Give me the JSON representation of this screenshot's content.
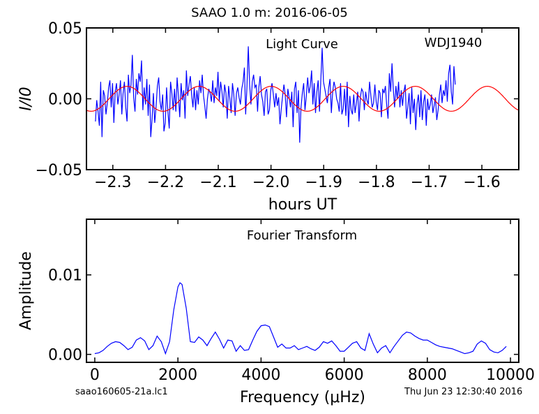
{
  "page": {
    "title": "SAAO 1.0 m:  2016-06-05",
    "footer_left": "saao160605-21a.lc1",
    "footer_right": "Thu Jun 23 12:30:40 2016"
  },
  "chart_data": [
    {
      "type": "line",
      "title": "Light Curve",
      "annotation": "WDJ1940",
      "xlabel": "hours UT",
      "ylabel": "I/I0",
      "xlim": [
        -2.35,
        -1.53
      ],
      "ylim": [
        -0.05,
        0.05
      ],
      "xticks": [
        -2.3,
        -2.2,
        -2.1,
        -2.0,
        -1.9,
        -1.8,
        -1.7,
        -1.6
      ],
      "xtick_labels": [
        "−2.3",
        "−2.2",
        "−2.1",
        "−2.0",
        "−1.9",
        "−1.8",
        "−1.7",
        "−1.6"
      ],
      "yticks": [
        -0.05,
        0.0,
        0.05
      ],
      "ytick_labels": [
        "−0.05",
        "0.00",
        "0.05"
      ],
      "grid": false,
      "series": [
        {
          "color": "#0000ff",
          "x_start": -2.333,
          "x_step": 0.0025,
          "values": [
            -0.016,
            -0.001,
            -0.009,
            -0.019,
            0.012,
            -0.027,
            0.006,
            0.002,
            -0.011,
            -0.003,
            0.008,
            0.013,
            -0.006,
            0.011,
            -0.017,
            0.005,
            0.011,
            -0.004,
            0.003,
            0.013,
            -0.011,
            0.004,
            0.012,
            -0.006,
            -0.016,
            0.017,
            0.004,
            0.01,
            0.031,
            0.001,
            -0.009,
            0.014,
            0.003,
            0.018,
            0.012,
            0.027,
            -0.008,
            0.008,
            -0.004,
            0.014,
            -0.012,
            0.01,
            -0.027,
            -0.014,
            0.004,
            -0.017,
            -0.006,
            0.009,
            0.015,
            -0.002,
            -0.008,
            0.003,
            -0.023,
            -0.017,
            0.008,
            -0.009,
            -0.021,
            0.012,
            0.004,
            -0.008,
            0.007,
            -0.009,
            0.015,
            0.002,
            -0.013,
            0.011,
            -0.001,
            0.006,
            -0.014,
            0.02,
            0.002,
            0.01,
            0.016,
            0.003,
            -0.006,
            0.008,
            -0.008,
            0.006,
            -0.004,
            0.013,
            0.004,
            0.017,
            0.002,
            -0.005,
            -0.014,
            0.0,
            0.007,
            0.004,
            -0.002,
            0.013,
            -0.003,
            0.008,
            0.002,
            0.019,
            -0.002,
            0.012,
            0.005,
            -0.006,
            0.01,
            0.004,
            -0.014,
            0.009,
            0.0,
            -0.01,
            0.011,
            0.003,
            -0.012,
            0.004,
            0.008,
            0.001,
            -0.004,
            0.007,
            0.012,
            0.022,
            -0.011,
            0.009,
            0.037,
            0.01,
            -0.004,
            0.012,
            0.017,
            0.008,
            0.01,
            -0.009,
            0.008,
            0.016,
            0.003,
            -0.002,
            -0.012,
            0.005,
            0.007,
            -0.011,
            -0.008,
            0.006,
            0.011,
            0.003,
            -0.006,
            0.004,
            -0.005,
            0.001,
            -0.018,
            -0.007,
            0.002,
            0.01,
            0.003,
            -0.013,
            0.007,
            0.001,
            -0.006,
            0.005,
            -0.02,
            0.007,
            0.012,
            -0.01,
            0.006,
            -0.031,
            -0.006,
            0.004,
            0.011,
            -0.008,
            0.002,
            0.015,
            0.004,
            0.009,
            0.02,
            -0.004,
            0.011,
            -0.01,
            0.005,
            0.013,
            -0.009,
            0.013,
            0.036,
            0.012,
            0.007,
            0.002,
            -0.003,
            0.008,
            0.014,
            -0.01,
            0.005,
            0.012,
            0.008,
            0.0,
            -0.003,
            -0.009,
            0.011,
            -0.011,
            -0.007,
            0.007,
            -0.012,
            0.012,
            -0.02,
            0.002,
            -0.008,
            -0.011,
            0.003,
            -0.01,
            -0.003,
            0.005,
            -0.016,
            0.001,
            0.007,
            0.005,
            -0.008,
            0.005,
            -0.001,
            -0.004,
            0.012,
            0.002,
            -0.006,
            -0.003,
            0.01,
            -0.002,
            -0.008,
            0.006,
            0.004,
            -0.013,
            0.007,
            0.004,
            0.009,
            -0.005,
            -0.014,
            0.018,
            0.005,
            0.025,
            0.007,
            -0.006,
            0.009,
            0.0,
            0.012,
            -0.006,
            0.006,
            -0.005,
            0.005,
            0.01,
            -0.014,
            -0.006,
            0.004,
            -0.018,
            0.008,
            -0.01,
            0.0,
            -0.022,
            -0.004,
            0.003,
            -0.013,
            0.006,
            -0.015,
            -0.002,
            0.003,
            -0.019,
            0.0,
            -0.008,
            -0.004,
            0.003,
            -0.01,
            -0.005,
            0.001,
            -0.015,
            -0.008,
            0.003,
            0.01,
            -0.003,
            0.006,
            0.002,
            0.013,
            -0.002,
            0.018,
            0.024,
            0.005,
            -0.004,
            0.023,
            0.01
          ]
        },
        {
          "color": "#ff0000",
          "function": "sinusoid",
          "amplitude": 0.0088,
          "period_hours": 0.13667,
          "peak_x": -2.273,
          "x_range": [
            -2.35,
            -1.53
          ]
        }
      ]
    },
    {
      "type": "line",
      "title": "Fourier Transform",
      "xlabel": "Frequency (μHz)",
      "ylabel": "Amplitude",
      "xlim": [
        -200,
        10200
      ],
      "ylim": [
        -0.001,
        0.017
      ],
      "xticks": [
        0,
        2000,
        4000,
        6000,
        8000,
        10000
      ],
      "xtick_labels": [
        "0",
        "2000",
        "4000",
        "6000",
        "8000",
        "10000"
      ],
      "yticks": [
        0.0,
        0.01
      ],
      "ytick_labels": [
        "0.00",
        "0.01"
      ],
      "grid": false,
      "series": [
        {
          "color": "#0000ff",
          "x": [
            0,
            100,
            200,
            300,
            400,
            500,
            600,
            700,
            800,
            900,
            1000,
            1100,
            1200,
            1300,
            1400,
            1500,
            1600,
            1700,
            1800,
            1900,
            2000,
            2050,
            2100,
            2200,
            2300,
            2400,
            2500,
            2600,
            2700,
            2800,
            2900,
            3000,
            3100,
            3200,
            3300,
            3400,
            3500,
            3600,
            3700,
            3800,
            3900,
            4000,
            4100,
            4200,
            4300,
            4400,
            4500,
            4600,
            4700,
            4800,
            4900,
            5000,
            5100,
            5200,
            5300,
            5400,
            5500,
            5600,
            5700,
            5800,
            5900,
            6000,
            6100,
            6200,
            6300,
            6400,
            6500,
            6600,
            6700,
            6800,
            6900,
            7000,
            7100,
            7200,
            7300,
            7400,
            7500,
            7600,
            7700,
            7800,
            7900,
            8000,
            8100,
            8200,
            8300,
            8400,
            8500,
            8600,
            8700,
            8800,
            8900,
            9000,
            9100,
            9200,
            9300,
            9400,
            9500,
            9600,
            9700,
            9800,
            9900
          ],
          "values": [
            0.0001,
            0.0002,
            0.0005,
            0.001,
            0.0014,
            0.0016,
            0.0015,
            0.0011,
            0.0006,
            0.0009,
            0.0018,
            0.0021,
            0.0017,
            0.0006,
            0.0011,
            0.0023,
            0.0016,
            0.0001,
            0.0016,
            0.0056,
            0.0085,
            0.009,
            0.0088,
            0.0058,
            0.0016,
            0.0015,
            0.0022,
            0.0018,
            0.0011,
            0.002,
            0.0028,
            0.0019,
            0.0008,
            0.0018,
            0.0017,
            0.0004,
            0.0011,
            0.0005,
            0.0006,
            0.0018,
            0.0029,
            0.0036,
            0.0037,
            0.0035,
            0.0022,
            0.0009,
            0.0013,
            0.0008,
            0.0008,
            0.0011,
            0.0006,
            0.0008,
            0.001,
            0.0007,
            0.0005,
            0.0009,
            0.0016,
            0.0014,
            0.0017,
            0.0011,
            0.0004,
            0.0004,
            0.0009,
            0.0014,
            0.0016,
            0.0008,
            0.0005,
            0.0026,
            0.0013,
            0.0002,
            0.0008,
            0.0011,
            0.0002,
            0.001,
            0.0017,
            0.0024,
            0.0028,
            0.0027,
            0.0023,
            0.002,
            0.0018,
            0.0018,
            0.0015,
            0.0012,
            0.001,
            0.0009,
            0.0008,
            0.0007,
            0.0005,
            0.0003,
            0.0001,
            0.0002,
            0.0004,
            0.0013,
            0.0017,
            0.0014,
            0.0006,
            0.0003,
            0.0002,
            0.0005,
            0.001
          ]
        }
      ]
    }
  ]
}
